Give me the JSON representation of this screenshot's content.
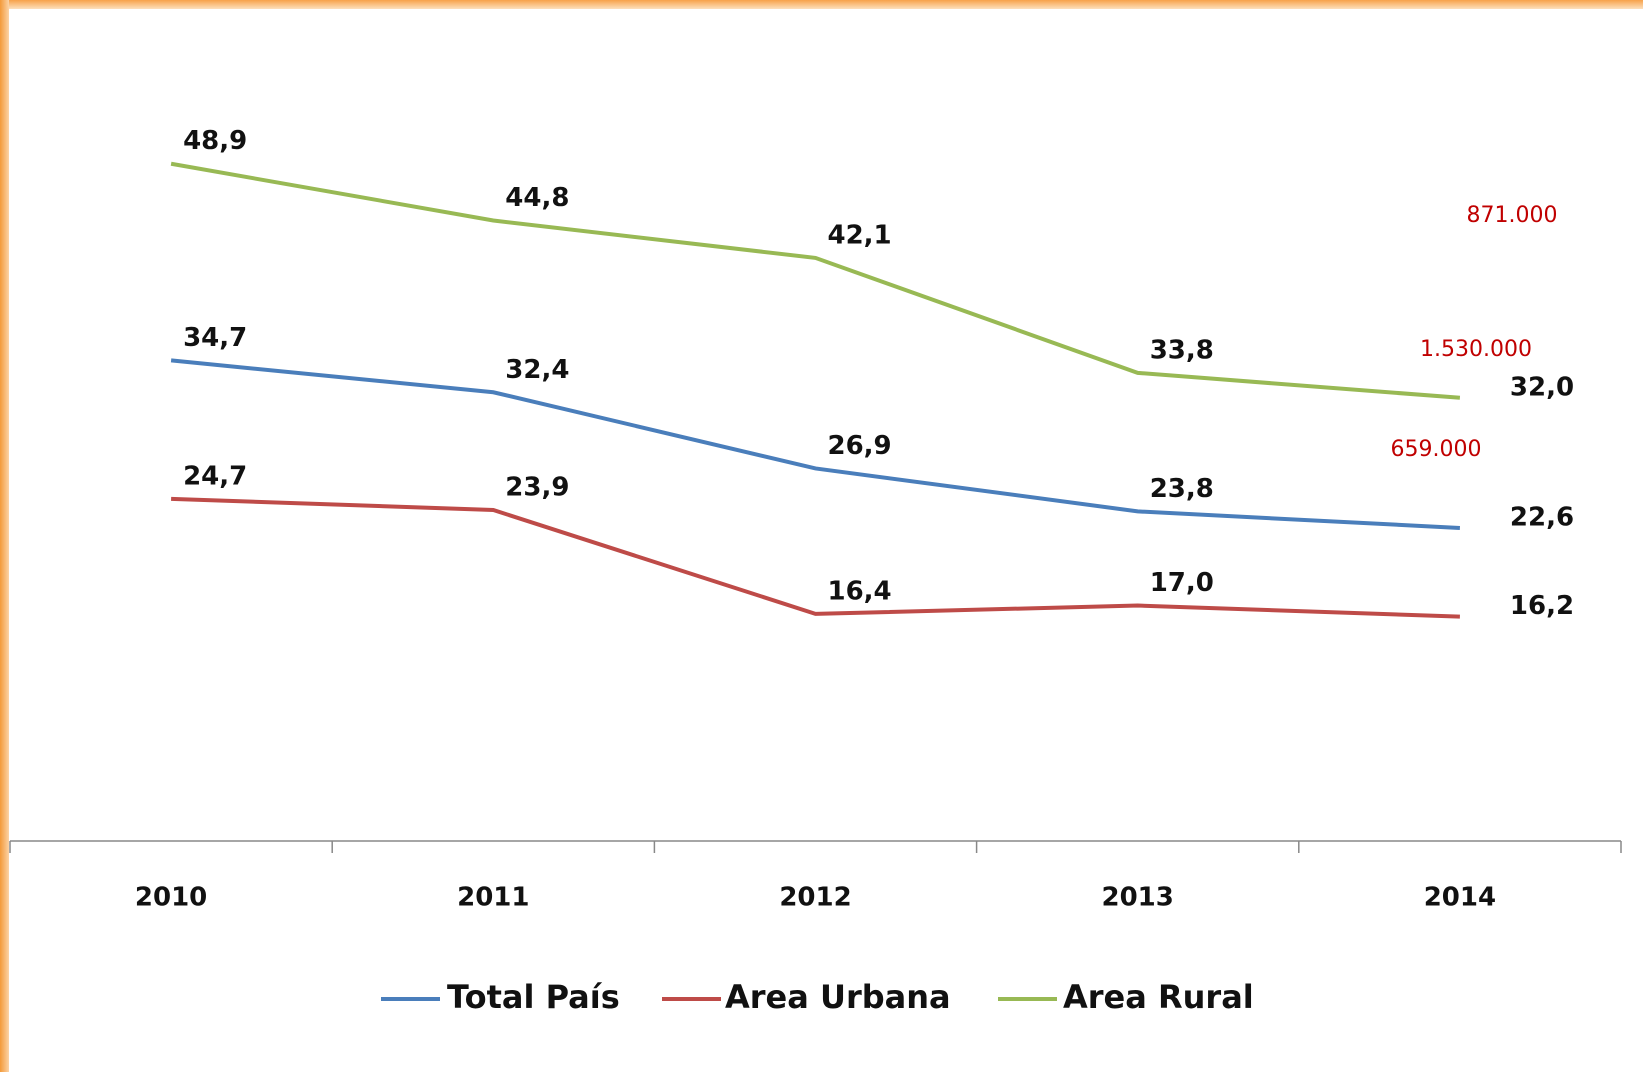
{
  "chart_data": {
    "type": "line",
    "categories": [
      "2010",
      "2011",
      "2012",
      "2013",
      "2014"
    ],
    "series": [
      {
        "name": "Total País",
        "color": "#4a7ebb",
        "values": [
          34.7,
          32.4,
          26.9,
          23.8,
          22.6
        ],
        "value_labels": [
          "34,7",
          "32,4",
          "26,9",
          "23,8",
          "22,6"
        ]
      },
      {
        "name": "Area Urbana",
        "color": "#be4b48",
        "values": [
          24.7,
          23.9,
          16.4,
          17.0,
          16.2
        ],
        "value_labels": [
          "24,7",
          "23,9",
          "16,4",
          "17,0",
          "16,2"
        ]
      },
      {
        "name": "Area Rural",
        "color": "#98b954",
        "values": [
          48.9,
          44.8,
          42.1,
          33.8,
          32.0
        ],
        "value_labels": [
          "48,9",
          "44,8",
          "42,1",
          "33,8",
          "32,0"
        ]
      }
    ],
    "annotations": [
      "871.000",
      "1.530.000",
      "659.000"
    ],
    "ylim": [
      0,
      60
    ]
  }
}
